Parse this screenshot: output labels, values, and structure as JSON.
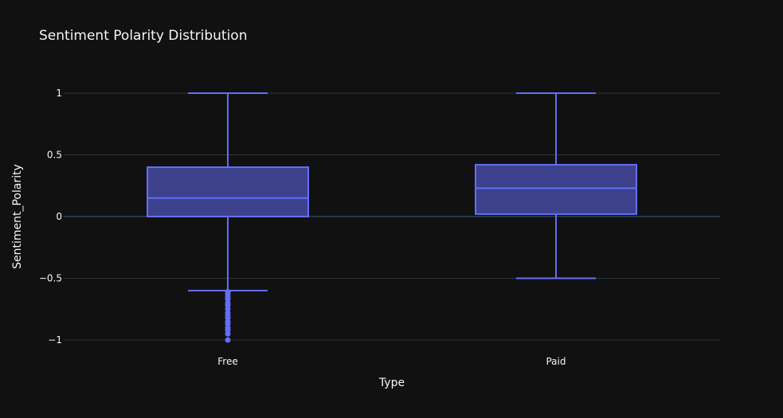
{
  "chart_data": {
    "type": "box",
    "title": "Sentiment Polarity Distribution",
    "xlabel": "Type",
    "ylabel": "Sentiment_Polarity",
    "ylim": [
      -1.1,
      1.18
    ],
    "yticks": [
      {
        "value": 1,
        "label": "1"
      },
      {
        "value": 0.5,
        "label": "0.5"
      },
      {
        "value": 0,
        "label": "0"
      },
      {
        "value": -0.5,
        "label": "−0.5"
      },
      {
        "value": -1,
        "label": "−1"
      }
    ],
    "grid": true,
    "categories": [
      "Free",
      "Paid"
    ],
    "boxes": [
      {
        "category": "Free",
        "min": -0.6,
        "q1": 0.0,
        "median": 0.15,
        "q3": 0.4,
        "max": 1.0,
        "outliers": [
          -0.61,
          -0.63,
          -0.65,
          -0.67,
          -0.7,
          -0.72,
          -0.75,
          -0.78,
          -0.8,
          -0.82,
          -0.85,
          -0.87,
          -0.9,
          -0.92,
          -0.95,
          -1.0
        ]
      },
      {
        "category": "Paid",
        "min": -0.5,
        "q1": 0.02,
        "median": 0.23,
        "q3": 0.42,
        "max": 1.0,
        "outliers": []
      }
    ],
    "colors": {
      "line": "#636efa",
      "fill": "#3d418c",
      "background": "#111111",
      "grid": "#283442",
      "text": "#f2f5fa"
    }
  }
}
